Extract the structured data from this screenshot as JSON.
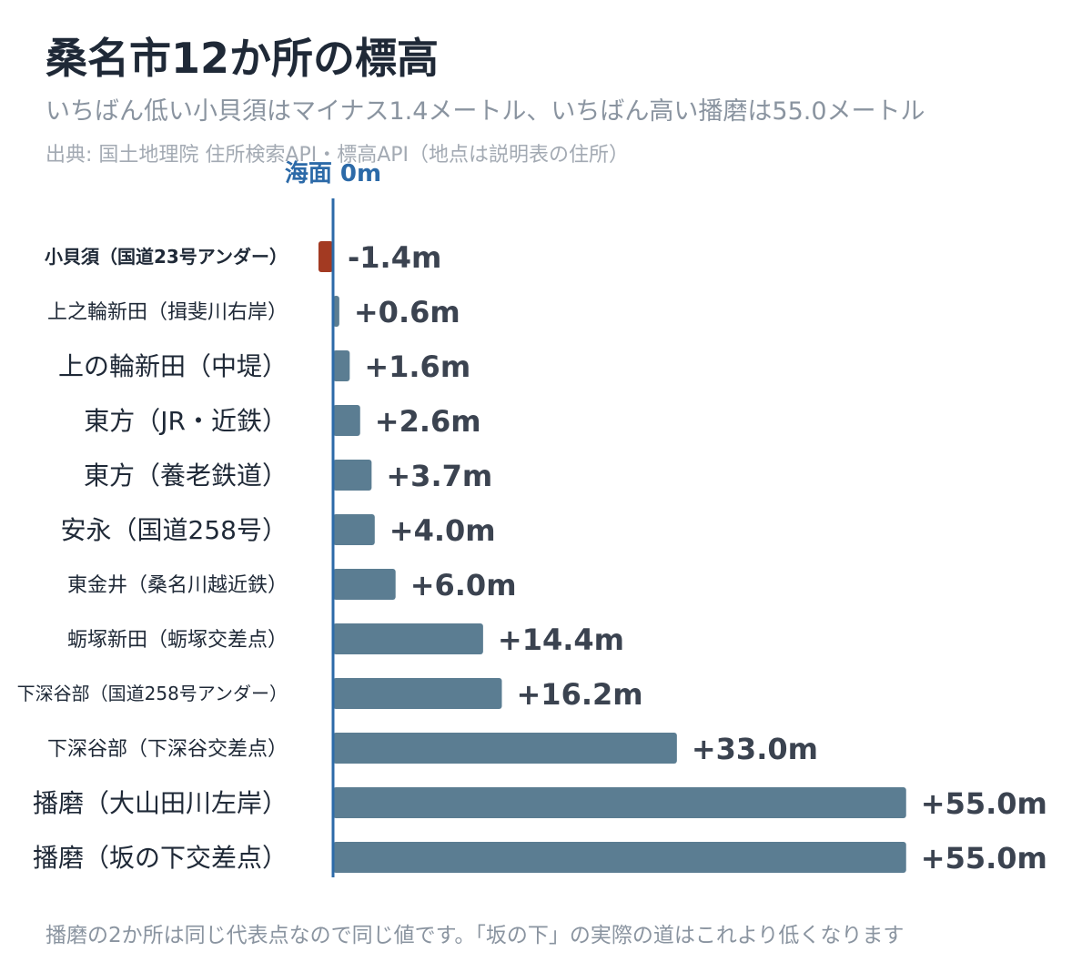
{
  "title": "桑名市12か所の標高",
  "subtitle": "いちばん低い小貝須はマイナス1.4メートル、いちばん高い播磨は55.0メートル",
  "source": "出典: 国土地理院 住所検索API・標高API（地点は説明表の住所）",
  "note": "播磨の2か所は同じ代表点なので同じ値です。「坂の下」の実際の道はこれより低くなります",
  "colors": {
    "positive": "#5b7d92",
    "negative": "#a33a22",
    "zero_line": "#2c6aa8",
    "value_text": "#3b4350",
    "category_text": "#1f2937"
  },
  "chart_data": {
    "type": "bar",
    "orientation": "horizontal",
    "zero_line_label": "海面 0m",
    "categories": [
      "小貝須（国道23号アンダー）",
      "上之輪新田（揖斐川右岸）",
      "上の輪新田（中堤）",
      "東方（JR・近鉄）",
      "東方（養老鉄道）",
      "安永（国道258号）",
      "東金井（桑名川越近鉄）",
      "蛎塚新田（蛎塚交差点）",
      "下深谷部（国道258号アンダー）",
      "下深谷部（下深谷交差点）",
      "播磨（大山田川左岸）",
      "播磨（坂の下交差点）"
    ],
    "values": [
      -1.4,
      0.6,
      1.6,
      2.6,
      3.7,
      4.0,
      6.0,
      14.4,
      16.2,
      33.0,
      55.0,
      55.0
    ],
    "value_labels": [
      "-1.4m",
      "+0.6m",
      "+1.6m",
      "+2.6m",
      "+3.7m",
      "+4.0m",
      "+6.0m",
      "+14.4m",
      "+16.2m",
      "+33.0m",
      "+55.0m",
      "+55.0m"
    ],
    "highlight_index": 0,
    "xlim": [
      -1.4,
      55.0
    ]
  }
}
